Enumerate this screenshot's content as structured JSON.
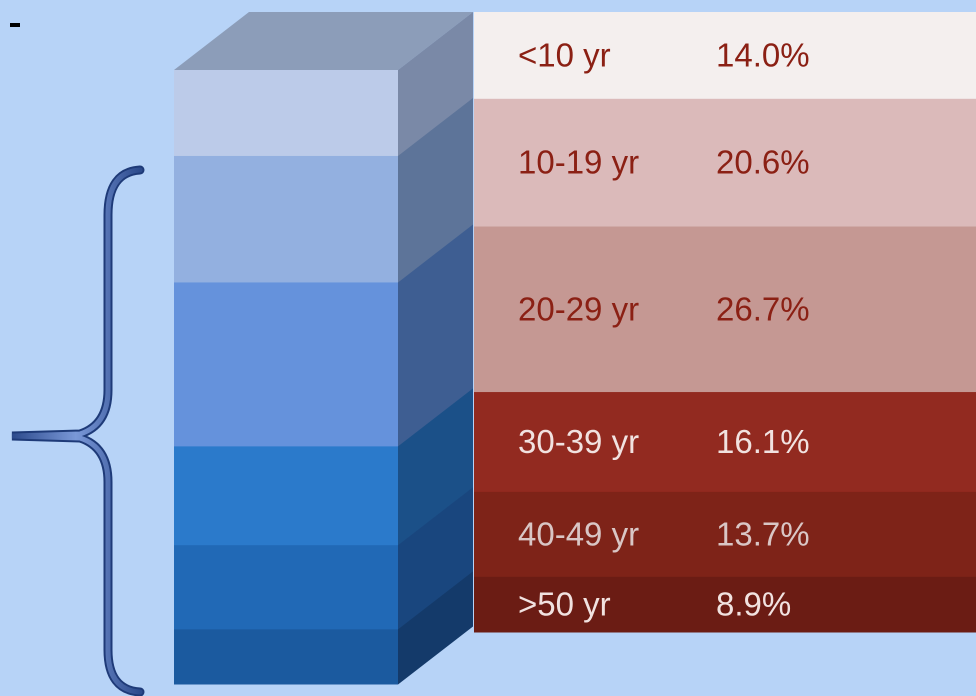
{
  "chart_data": {
    "type": "stacked-bar-3d",
    "title": "",
    "categories": [
      "<10 yr",
      "10-19 yr",
      "20-29 yr",
      "30-39 yr",
      "40-49 yr",
      ">50 yr"
    ],
    "values_text": [
      "14.0%",
      "20.6%",
      "26.7%",
      "16.1%",
      "13.7%",
      "8.9%"
    ],
    "values": [
      14.0,
      20.6,
      26.7,
      16.1,
      13.7,
      8.9
    ],
    "unit": "%",
    "bar_front_colors": [
      "#bccbe9",
      "#93b0e0",
      "#6592dc",
      "#2b7acb",
      "#2169b6",
      "#1b5a9f"
    ],
    "bar_side_colors": [
      "#7a89a7",
      "#5d7499",
      "#3e5e92",
      "#1b5088",
      "#19467e",
      "#143a6a"
    ],
    "band_colors": [
      "#f4efee",
      "#dbbaba",
      "#c59893",
      "#922a20",
      "#7e2318",
      "#6b1c14"
    ],
    "label_colors": [
      "#8b2014",
      "#8b2014",
      "#8b2014",
      "#f1e2e0",
      "#d9c6c5",
      "#f1e2e0"
    ],
    "background": "#b7d3f7"
  }
}
